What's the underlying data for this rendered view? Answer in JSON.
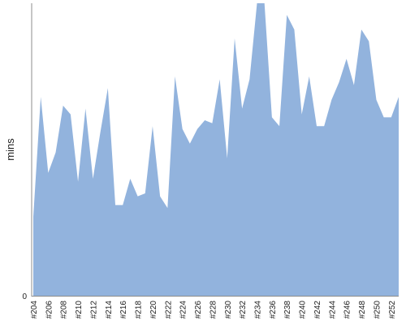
{
  "chart_data": {
    "type": "area",
    "title": "",
    "xlabel": "",
    "ylabel": "mins",
    "ylim": [
      0,
      100
    ],
    "yticks": [
      "0"
    ],
    "grid": false,
    "legend": "none",
    "color": "#92b3dd",
    "x": [
      "#204",
      "#205",
      "#206",
      "#207",
      "#208",
      "#209",
      "#210",
      "#211",
      "#212",
      "#213",
      "#214",
      "#215",
      "#216",
      "#217",
      "#218",
      "#219",
      "#220",
      "#221",
      "#222",
      "#223",
      "#224",
      "#225",
      "#226",
      "#227",
      "#228",
      "#229",
      "#230",
      "#231",
      "#232",
      "#233",
      "#234",
      "#235",
      "#236",
      "#237",
      "#238",
      "#239",
      "#240",
      "#241",
      "#242",
      "#243",
      "#244",
      "#245",
      "#246",
      "#247",
      "#248",
      "#249",
      "#250",
      "#251",
      "#252",
      "#253"
    ],
    "xtick_labels": [
      "#204",
      "#206",
      "#208",
      "#210",
      "#212",
      "#214",
      "#216",
      "#218",
      "#220",
      "#222",
      "#224",
      "#226",
      "#228",
      "#230",
      "#232",
      "#234",
      "#236",
      "#238",
      "#240",
      "#242",
      "#244",
      "#246",
      "#248",
      "#250",
      "#252"
    ],
    "series": [
      {
        "values": [
          27,
          68,
          42,
          49,
          65,
          62,
          39,
          64,
          40,
          56,
          71,
          31,
          31,
          40,
          34,
          35,
          58,
          34,
          30,
          75,
          57,
          52,
          57,
          60,
          59,
          74,
          47,
          88,
          64,
          74,
          100,
          100,
          61,
          58,
          96,
          91,
          62,
          75,
          58,
          58,
          67,
          73,
          81,
          72,
          91,
          87,
          67,
          61,
          61,
          68
        ]
      }
    ]
  }
}
